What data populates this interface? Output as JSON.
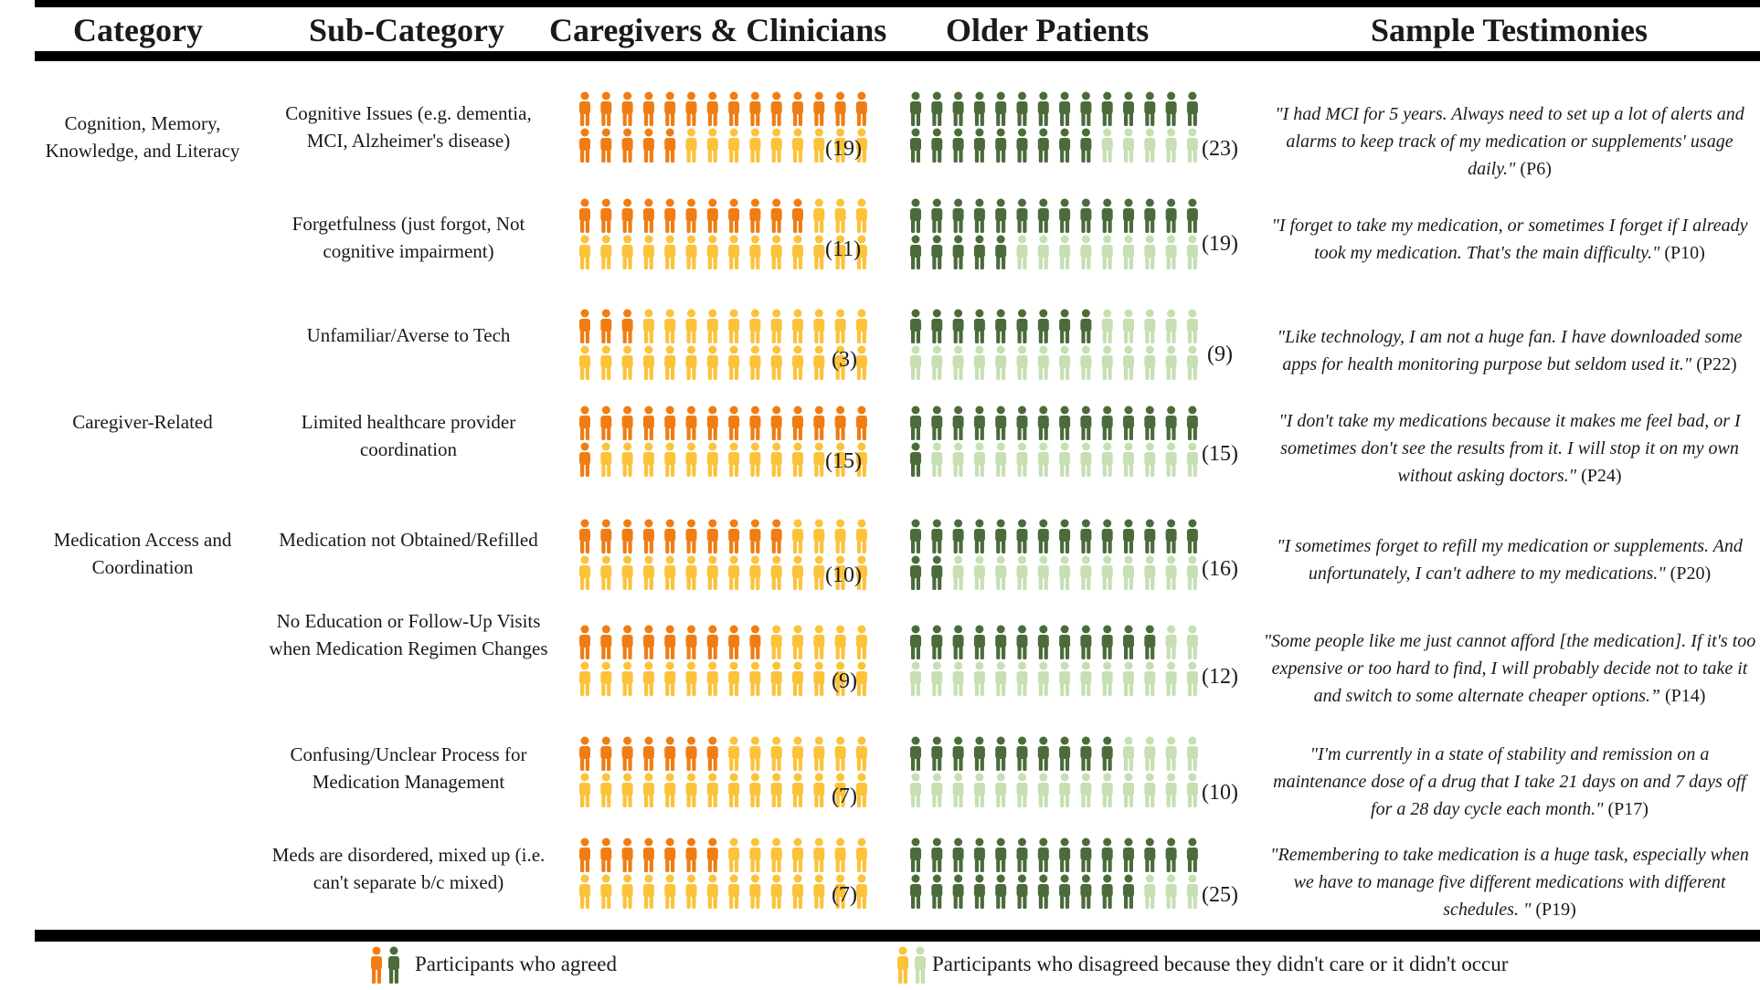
{
  "headers": {
    "category": "Category",
    "sub_category": "Sub-Category",
    "caregivers": "Caregivers & Clinicians",
    "patients": "Older Patients",
    "testimonies": "Sample Testimonies"
  },
  "categories": [
    "Cognition, Memory, Knowledge, and Literacy",
    "Caregiver-Related",
    "Medication Access and Coordination"
  ],
  "colors": {
    "caregiver_agreed": "#f07d13",
    "caregiver_disagreed": "#fcc23a",
    "patient_agreed": "#4b6b3b",
    "patient_disagreed": "#c6dfb3"
  },
  "icon": "person-icon",
  "rows": [
    {
      "sub": "Cognitive Issues (e.g. dementia, MCI, Alzheimer's disease)",
      "caregivers": 19,
      "caregivers_label": "(19)",
      "patients": 23,
      "patients_label": "(23)",
      "quote": "\"I had MCI for 5 years. Always need to set up a lot of alerts and alarms to keep track of my medication or supplements' usage daily.\"",
      "pid": " (P6)"
    },
    {
      "sub": "Forgetfulness (just forgot, Not cognitive impairment)",
      "caregivers": 11,
      "caregivers_label": "(11)",
      "patients": 19,
      "patients_label": "(19)",
      "quote": "\"I forget to take my medication, or sometimes I forget if I already took my medication. That's the main difficulty.\"",
      "pid": " (P10)"
    },
    {
      "sub": "Unfamiliar/Averse to Tech",
      "caregivers": 3,
      "caregivers_label": "(3)",
      "patients": 9,
      "patients_label": "(9)",
      "quote": "\"Like technology, I am not a huge fan. I have downloaded some apps for health monitoring purpose but seldom used it.\"",
      "pid": " (P22)"
    },
    {
      "sub": "Limited healthcare provider coordination",
      "caregivers": 15,
      "caregivers_label": "(15)",
      "patients": 15,
      "patients_label": "(15)",
      "quote": "\"I don't take my medications because it makes me feel bad, or I sometimes don't see the results from it. I will stop it on my own without asking doctors.\"",
      "pid": " (P24)"
    },
    {
      "sub": "Medication not Obtained/Refilled",
      "caregivers": 10,
      "caregivers_label": "(10)",
      "patients": 16,
      "patients_label": "(16)",
      "quote": "\"I sometimes forget to refill my medication or supplements. And unfortunately, I can't adhere to my medications.\"",
      "pid": " (P20)"
    },
    {
      "sub": "No Education or Follow-Up Visits when Medication Regimen Changes",
      "caregivers": 9,
      "caregivers_label": "(9)",
      "patients": 12,
      "patients_label": "(12)",
      "quote": "\"Some people like me just cannot afford [the medication]. If it's too expensive or too hard to find, I will probably decide not to take it and switch to some alternate cheaper options.”",
      "pid": " (P14)"
    },
    {
      "sub": "Confusing/Unclear Process for Medication Management",
      "caregivers": 7,
      "caregivers_label": "(7)",
      "patients": 10,
      "patients_label": "(10)",
      "quote": "\"I'm currently in a state of stability and remission on a maintenance dose of a drug that I take 21 days on and 7 days off for a 28 day cycle each month.\"",
      "pid": " (P17)"
    },
    {
      "sub": "Meds are disordered, mixed up (i.e. can't separate b/c mixed)",
      "caregivers": 7,
      "caregivers_label": "(7)",
      "patients": 25,
      "patients_label": "(25)",
      "quote": "\"Remembering to take medication is a huge task, especially when we have to manage five different medications with different schedules. \"",
      "pid": " (P19)"
    }
  ],
  "legend": {
    "agreed": "Participants who agreed",
    "disagreed": "Participants who disagreed because they didn't care or it didn't occur"
  }
}
